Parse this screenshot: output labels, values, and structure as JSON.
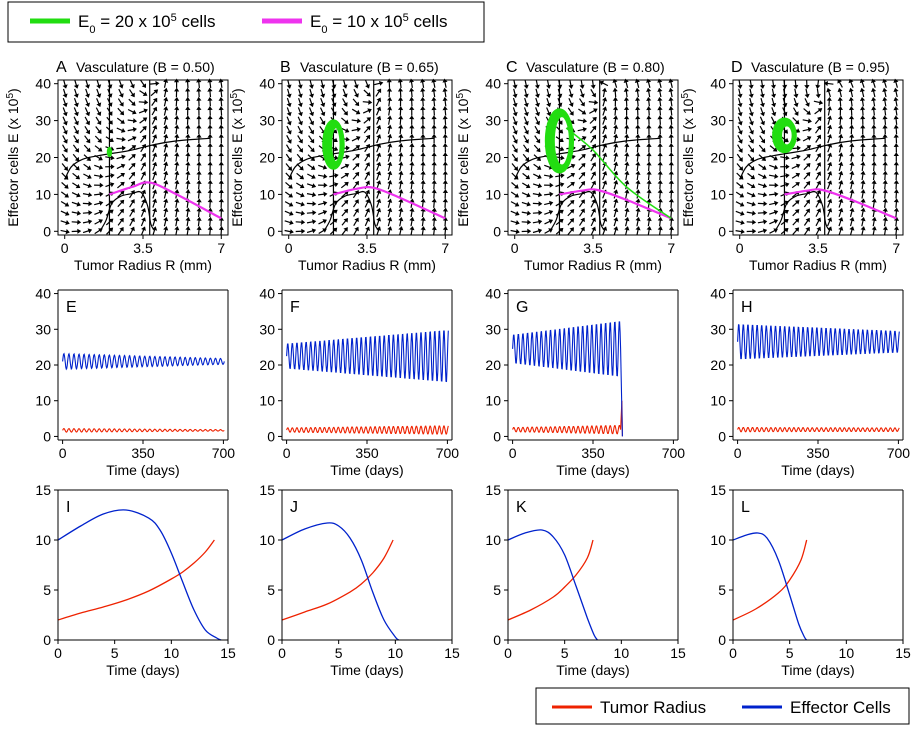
{
  "legend_top": {
    "items": [
      {
        "base": "E",
        "sub": "0",
        "middle": " = 20 x 10",
        "sup": "5",
        "tail": " cells",
        "color": "#22dd11"
      },
      {
        "base": "E",
        "sub": "0",
        "middle": " = 10 x 10",
        "sup": "5",
        "tail": " cells",
        "color": "#ee33ee"
      }
    ]
  },
  "legend_bottom": {
    "items": [
      {
        "label": "Tumor Radius",
        "color": "#ee2200"
      },
      {
        "label": "Effector Cells",
        "color": "#0022cc"
      }
    ]
  },
  "colors": {
    "tumor": "#ee2200",
    "effector": "#0022cc",
    "green": "#22dd11",
    "magenta": "#ee33ee",
    "arrows": "#000000"
  },
  "chart_data": [
    {
      "panel": "A",
      "type": "line",
      "title": "Vasculature (B = 0.50)",
      "xlabel": "Tumor Radius R (mm)",
      "ylabel": "Effector cells E (x 10^5)",
      "xticks": [
        "0",
        "3.5",
        "7"
      ],
      "yticks": [
        "0",
        "10",
        "20",
        "30",
        "40"
      ],
      "xlim": [
        -0.3,
        7.3
      ],
      "ylim": [
        -1,
        41
      ],
      "B": 0.5,
      "vector_field": true,
      "orbit": {
        "R": 2.0,
        "E": 21.5,
        "rx": 0.12,
        "ry": 1.4
      },
      "magenta": [
        [
          2.0,
          10
        ],
        [
          3.0,
          12
        ],
        [
          3.8,
          13.2
        ],
        [
          5.0,
          10
        ],
        [
          7.0,
          3.5
        ]
      ],
      "green_tail": []
    },
    {
      "panel": "B",
      "type": "line",
      "title": "Vasculature (B = 0.65)",
      "xlabel": "Tumor Radius R (mm)",
      "ylabel": "Effector cells E (x 10^5)",
      "xticks": [
        "0",
        "3.5",
        "7"
      ],
      "yticks": [
        "0",
        "10",
        "20",
        "30",
        "40"
      ],
      "xlim": [
        -0.3,
        7.3
      ],
      "ylim": [
        -1,
        41
      ],
      "B": 0.65,
      "vector_field": true,
      "orbit": {
        "R": 2.0,
        "E": 23.5,
        "rx": 0.45,
        "ry": 6.5
      },
      "magenta": [
        [
          2.0,
          10
        ],
        [
          3.0,
          11.5
        ],
        [
          3.8,
          11.8
        ],
        [
          5.0,
          9
        ],
        [
          7.0,
          3.5
        ]
      ],
      "green_tail": []
    },
    {
      "panel": "C",
      "type": "line",
      "title": "Vasculature (B = 0.80)",
      "xlabel": "Tumor Radius R (mm)",
      "ylabel": "Effector cells E (x 10^5)",
      "xticks": [
        "0",
        "3.5",
        "7"
      ],
      "yticks": [
        "0",
        "10",
        "20",
        "30",
        "40"
      ],
      "xlim": [
        -0.3,
        7.3
      ],
      "ylim": [
        -1,
        41
      ],
      "B": 0.8,
      "vector_field": true,
      "orbit": {
        "R": 2.0,
        "E": 24.5,
        "rx": 0.6,
        "ry": 8.5
      },
      "magenta": [
        [
          2.0,
          10
        ],
        [
          3.0,
          11
        ],
        [
          3.7,
          11.2
        ],
        [
          5.0,
          8.5
        ],
        [
          7.0,
          3.5
        ]
      ],
      "green_tail": [
        [
          2.3,
          28
        ],
        [
          3.5,
          22
        ],
        [
          5.0,
          12
        ],
        [
          7.0,
          3.5
        ]
      ]
    },
    {
      "panel": "D",
      "type": "line",
      "title": "Vasculature (B = 0.95)",
      "xlabel": "Tumor Radius R (mm)",
      "ylabel": "Effector cells E (x 10^5)",
      "xticks": [
        "0",
        "3.5",
        "7"
      ],
      "yticks": [
        "0",
        "10",
        "20",
        "30",
        "40"
      ],
      "xlim": [
        -0.3,
        7.3
      ],
      "ylim": [
        -1,
        41
      ],
      "B": 0.95,
      "vector_field": true,
      "orbit": {
        "R": 2.0,
        "E": 26,
        "rx": 0.5,
        "ry": 4.5
      },
      "magenta": [
        [
          2.0,
          10
        ],
        [
          3.0,
          11
        ],
        [
          3.7,
          11.2
        ],
        [
          5.0,
          8.5
        ],
        [
          7.0,
          3.5
        ]
      ],
      "green_tail": []
    },
    {
      "panel": "E",
      "type": "line",
      "xlabel": "Time (days)",
      "xticks": [
        "0",
        "350",
        "700"
      ],
      "yticks": [
        "0",
        "10",
        "20",
        "30",
        "40"
      ],
      "xlim": [
        -20,
        720
      ],
      "ylim": [
        -1,
        41
      ],
      "effector": {
        "mean": 21,
        "amp_start": 2.2,
        "amp_end": 0.8,
        "period": 22,
        "end": 705
      },
      "tumor": {
        "mean": 1.7,
        "amp_start": 0.5,
        "amp_end": 0.2,
        "end": 705
      }
    },
    {
      "panel": "F",
      "type": "line",
      "xlabel": "Time (days)",
      "xticks": [
        "0",
        "350",
        "700"
      ],
      "yticks": [
        "0",
        "10",
        "20",
        "30",
        "40"
      ],
      "xlim": [
        -20,
        720
      ],
      "ylim": [
        -1,
        41
      ],
      "effector": {
        "mean": 22.5,
        "amp_start": 3.5,
        "amp_end": 7.5,
        "period": 20,
        "end": 705
      },
      "tumor": {
        "mean": 1.8,
        "amp_start": 0.6,
        "amp_end": 1.2,
        "end": 705
      }
    },
    {
      "panel": "G",
      "type": "line",
      "xlabel": "Time (days)",
      "xticks": [
        "0",
        "350",
        "700"
      ],
      "yticks": [
        "0",
        "10",
        "20",
        "30",
        "40"
      ],
      "xlim": [
        -20,
        720
      ],
      "ylim": [
        -1,
        41
      ],
      "effector": {
        "mean": 24.5,
        "amp_start": 4,
        "amp_end": 8,
        "period": 20,
        "end": 470
      },
      "tumor": {
        "mean": 1.9,
        "amp_start": 0.6,
        "amp_end": 1.2,
        "end": 470
      },
      "collapse": {
        "t": 478,
        "tumor_peak": 10
      }
    },
    {
      "panel": "H",
      "type": "line",
      "xlabel": "Time (days)",
      "xticks": [
        "0",
        "350",
        "700"
      ],
      "yticks": [
        "0",
        "10",
        "20",
        "30",
        "40"
      ],
      "xlim": [
        -20,
        720
      ],
      "ylim": [
        -1,
        41
      ],
      "effector": {
        "mean": 26.5,
        "amp_start": 5,
        "amp_end": 3,
        "period": 20,
        "end": 705
      },
      "tumor": {
        "mean": 1.9,
        "amp_start": 0.6,
        "amp_end": 0.5,
        "end": 705
      }
    },
    {
      "panel": "I",
      "type": "line",
      "xlabel": "Time (days)",
      "xticks": [
        "0",
        "5",
        "10",
        "15"
      ],
      "yticks": [
        "0",
        "5",
        "10",
        "15"
      ],
      "xlim": [
        0,
        15
      ],
      "ylim": [
        0,
        15
      ],
      "series": [
        {
          "name": "Tumor Radius",
          "points": [
            [
              0,
              2
            ],
            [
              2,
              2.7
            ],
            [
              4,
              3.3
            ],
            [
              6,
              4
            ],
            [
              8,
              4.9
            ],
            [
              10,
              6.1
            ],
            [
              11,
              6.8
            ],
            [
              12,
              7.7
            ],
            [
              13,
              8.8
            ],
            [
              13.8,
              10
            ]
          ]
        },
        {
          "name": "Effector Cells",
          "points": [
            [
              0,
              10
            ],
            [
              2,
              11.4
            ],
            [
              4,
              12.6
            ],
            [
              6,
              13
            ],
            [
              8,
              12.2
            ],
            [
              9,
              11
            ],
            [
              10,
              8.7
            ],
            [
              11,
              5.8
            ],
            [
              12,
              3
            ],
            [
              13,
              1
            ],
            [
              14,
              0.2
            ],
            [
              14.4,
              0
            ]
          ]
        }
      ]
    },
    {
      "panel": "J",
      "type": "line",
      "xlabel": "Time (days)",
      "xticks": [
        "0",
        "5",
        "10",
        "15"
      ],
      "yticks": [
        "0",
        "5",
        "10",
        "15"
      ],
      "xlim": [
        0,
        15
      ],
      "ylim": [
        0,
        15
      ],
      "series": [
        {
          "name": "Tumor Radius",
          "points": [
            [
              0,
              2
            ],
            [
              2,
              2.8
            ],
            [
              4,
              3.6
            ],
            [
              6,
              4.8
            ],
            [
              7,
              5.6
            ],
            [
              8,
              6.7
            ],
            [
              9,
              8.2
            ],
            [
              9.8,
              10
            ]
          ]
        },
        {
          "name": "Effector Cells",
          "points": [
            [
              0,
              10
            ],
            [
              2,
              11.1
            ],
            [
              4,
              11.7
            ],
            [
              5,
              11.4
            ],
            [
              6,
              10.2
            ],
            [
              7,
              8
            ],
            [
              8,
              4.8
            ],
            [
              9,
              2
            ],
            [
              10,
              0.3
            ],
            [
              10.3,
              0
            ]
          ]
        }
      ]
    },
    {
      "panel": "K",
      "type": "line",
      "xlabel": "Time (days)",
      "xticks": [
        "0",
        "5",
        "10",
        "15"
      ],
      "yticks": [
        "0",
        "5",
        "10",
        "15"
      ],
      "xlim": [
        0,
        15
      ],
      "ylim": [
        0,
        15
      ],
      "series": [
        {
          "name": "Tumor Radius",
          "points": [
            [
              0,
              2
            ],
            [
              2,
              3
            ],
            [
              4,
              4.3
            ],
            [
              5,
              5.3
            ],
            [
              6,
              6.5
            ],
            [
              7,
              8.2
            ],
            [
              7.5,
              10
            ]
          ]
        },
        {
          "name": "Effector Cells",
          "points": [
            [
              0,
              10
            ],
            [
              1.5,
              10.7
            ],
            [
              3,
              11
            ],
            [
              4,
              10.3
            ],
            [
              5,
              8.5
            ],
            [
              6,
              5.4
            ],
            [
              7,
              2.2
            ],
            [
              7.6,
              0.5
            ],
            [
              7.9,
              0
            ]
          ]
        }
      ]
    },
    {
      "panel": "L",
      "type": "line",
      "xlabel": "Time (days)",
      "xticks": [
        "0",
        "5",
        "10",
        "15"
      ],
      "yticks": [
        "0",
        "5",
        "10",
        "15"
      ],
      "xlim": [
        0,
        15
      ],
      "ylim": [
        0,
        15
      ],
      "series": [
        {
          "name": "Tumor Radius",
          "points": [
            [
              0,
              2
            ],
            [
              2,
              3.1
            ],
            [
              4,
              4.7
            ],
            [
              5,
              6
            ],
            [
              6,
              8
            ],
            [
              6.5,
              10
            ]
          ]
        },
        {
          "name": "Effector Cells",
          "points": [
            [
              0,
              10
            ],
            [
              1.2,
              10.5
            ],
            [
              2.2,
              10.7
            ],
            [
              3,
              10.2
            ],
            [
              4,
              8
            ],
            [
              5,
              4.5
            ],
            [
              5.8,
              1.6
            ],
            [
              6.3,
              0.3
            ],
            [
              6.5,
              0
            ]
          ]
        }
      ]
    }
  ]
}
